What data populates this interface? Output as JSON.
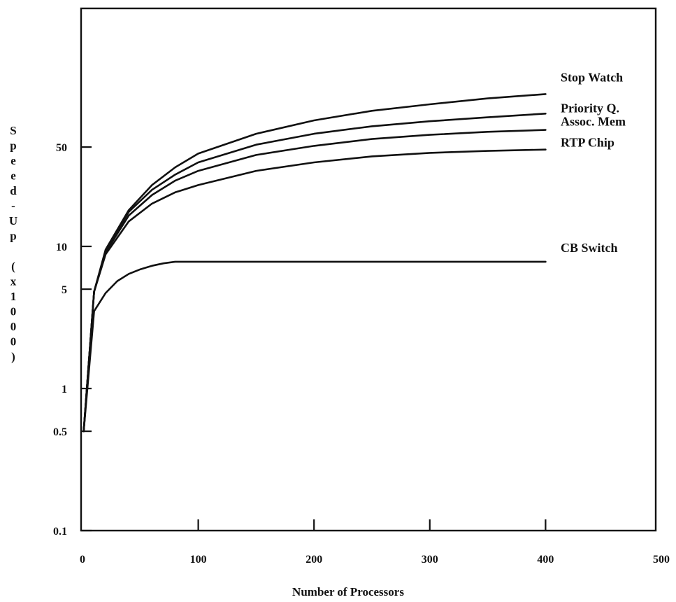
{
  "chart_data": {
    "type": "line",
    "title": "",
    "xlabel": "Number of Processors",
    "ylabel": "Speed-Up (x1000)",
    "xlim": [
      0,
      500
    ],
    "ylim": [
      0.1,
      150
    ],
    "yscale": "log",
    "grid": false,
    "legend": "labels at right end of lines",
    "x_ticks": [
      0,
      100,
      200,
      300,
      400,
      500
    ],
    "y_ticks": [
      {
        "value": 0.1,
        "label": "0.1"
      },
      {
        "value": 0.5,
        "label": "0.5"
      },
      {
        "value": 1,
        "label": "1"
      },
      {
        "value": 5,
        "label": "5"
      },
      {
        "value": 10,
        "label": "10"
      },
      {
        "value": 50,
        "label": "50"
      }
    ],
    "series": [
      {
        "name": "Stop Watch",
        "x": [
          1,
          10,
          20,
          40,
          60,
          80,
          100,
          150,
          200,
          250,
          300,
          350,
          400
        ],
        "y": [
          0.5,
          4.8,
          9.5,
          18,
          27,
          36,
          45,
          62,
          77,
          90,
          100,
          110,
          118
        ]
      },
      {
        "name": "Priority Q.",
        "x": [
          1,
          10,
          20,
          40,
          60,
          80,
          100,
          150,
          200,
          250,
          300,
          350,
          400
        ],
        "y": [
          0.5,
          4.8,
          9.3,
          17.5,
          25,
          32,
          39,
          52,
          62,
          70,
          76,
          81,
          86
        ]
      },
      {
        "name": "Assoc. Mem",
        "x": [
          1,
          10,
          20,
          40,
          60,
          80,
          100,
          150,
          200,
          250,
          300,
          350,
          400
        ],
        "y": [
          0.5,
          4.8,
          9.1,
          16.5,
          23,
          29,
          34,
          44,
          51,
          57,
          61,
          64,
          66
        ]
      },
      {
        "name": "RTP Chip",
        "x": [
          1,
          10,
          20,
          40,
          60,
          80,
          100,
          150,
          200,
          250,
          300,
          350,
          400
        ],
        "y": [
          0.5,
          4.8,
          8.8,
          15,
          20,
          24,
          27,
          34,
          39,
          43,
          45.5,
          47,
          48
        ]
      },
      {
        "name": "CB Switch",
        "x": [
          1,
          10,
          20,
          30,
          40,
          50,
          60,
          70,
          80,
          100,
          200,
          300,
          400
        ],
        "y": [
          0.5,
          3.5,
          4.7,
          5.7,
          6.4,
          6.9,
          7.3,
          7.6,
          7.8,
          7.8,
          7.8,
          7.8,
          7.8
        ]
      }
    ]
  }
}
